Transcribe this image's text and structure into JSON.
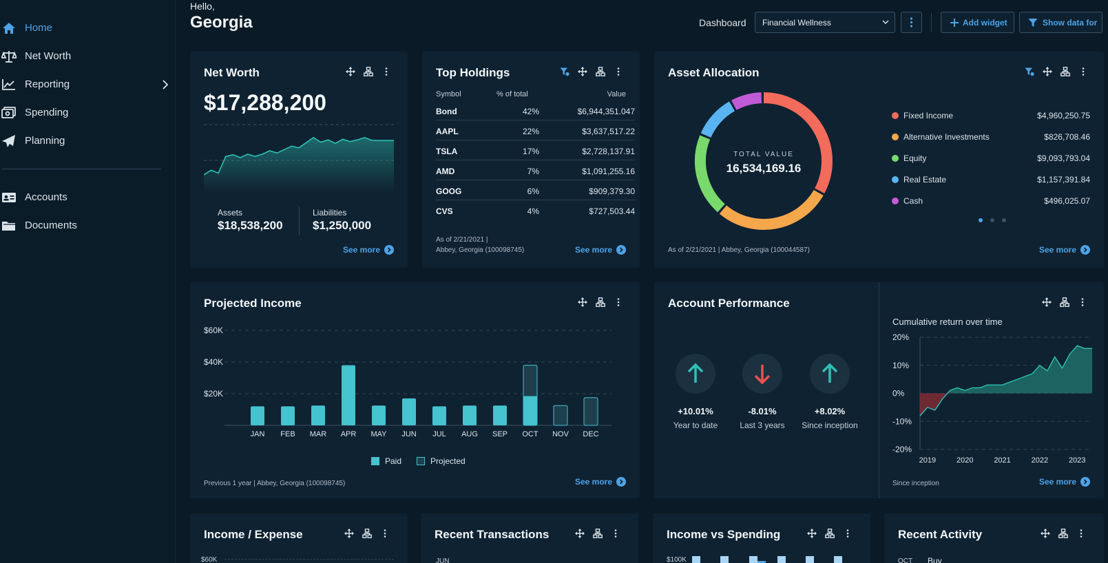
{
  "sidebar": {
    "items": [
      {
        "label": "Home",
        "icon": "home-icon"
      },
      {
        "label": "Net Worth",
        "icon": "scale-icon"
      },
      {
        "label": "Reporting",
        "icon": "line-chart-icon"
      },
      {
        "label": "Spending",
        "icon": "money-icon"
      },
      {
        "label": "Planning",
        "icon": "paper-plane-icon"
      },
      {
        "label": "Accounts",
        "icon": "id-card-icon"
      },
      {
        "label": "Documents",
        "icon": "folder-icon"
      }
    ]
  },
  "header": {
    "hello": "Hello,",
    "name": "Georgia",
    "dashboard_label": "Dashboard",
    "dashboard_select": "Financial Wellness",
    "add_widget": "Add widget",
    "show_data_for": "Show data for"
  },
  "net_worth": {
    "title": "Net Worth",
    "value": "$17,288,200",
    "assets_label": "Assets",
    "assets_value": "$18,538,200",
    "liabilities_label": "Liabilities",
    "liabilities_value": "$1,250,000",
    "see_more": "See more"
  },
  "top_holdings": {
    "title": "Top Holdings",
    "col_symbol": "Symbol",
    "col_pct": "% of total",
    "col_value": "Value",
    "rows": [
      {
        "symbol": "Bond",
        "pct": "42%",
        "value": "$6,944,351.047"
      },
      {
        "symbol": "AAPL",
        "pct": "22%",
        "value": "$3,637,517.22"
      },
      {
        "symbol": "TSLA",
        "pct": "17%",
        "value": "$2,728,137.91"
      },
      {
        "symbol": "AMD",
        "pct": "7%",
        "value": "$1,091,255.16"
      },
      {
        "symbol": "GOOG",
        "pct": "6%",
        "value": "$909,379.30"
      },
      {
        "symbol": "CVS",
        "pct": "4%",
        "value": "$727,503.44"
      }
    ],
    "note_line1": "As of 2/21/2021 |",
    "note_line2": "Abbey, Georgia (100098745)",
    "see_more": "See more"
  },
  "asset_allocation": {
    "title": "Asset Allocation",
    "total_label": "TOTAL VALUE",
    "total_value": "16,534,169.16",
    "items": [
      {
        "name": "Fixed Income",
        "value": "$4,960,250.75",
        "color": "#f26b5b"
      },
      {
        "name": "Alternative Investments",
        "value": "$826,708.46",
        "color": "#f5a74b"
      },
      {
        "name": "Equity",
        "value": "$9,093,793.04",
        "color": "#79d96c"
      },
      {
        "name": "Real Estate",
        "value": "$1,157,391.84",
        "color": "#5ab4f2"
      },
      {
        "name": "Cash",
        "value": "$496,025.07",
        "color": "#c05bd6"
      }
    ],
    "note": "As of 2/21/2021 | Abbey, Georgia (100044587)",
    "see_more": "See more"
  },
  "projected_income": {
    "title": "Projected Income",
    "legend_paid": "Paid",
    "legend_projected": "Projected",
    "note": "Previous 1 year | Abbey, Georgia (100098745)",
    "see_more": "See more"
  },
  "account_performance": {
    "title": "Account Performance",
    "metrics": [
      {
        "value": "+10.01%",
        "label": "Year to date",
        "direction": "up"
      },
      {
        "value": "-8.01%",
        "label": "Last 3 years",
        "direction": "down"
      },
      {
        "value": "+8.02%",
        "label": "Since inception",
        "direction": "up"
      }
    ],
    "cumulative_title": "Cumulative return over time",
    "since_inception": "Since inception",
    "see_more": "See more"
  },
  "bottom_cards": {
    "income_expense": "Income / Expense",
    "income_expense_tick": "$60K",
    "recent_transactions": "Recent Transactions",
    "recent_transactions_tick": "JUN",
    "income_vs_spending": "Income vs Spending",
    "income_vs_spending_tick": "$100K",
    "recent_activity": "Recent Activity",
    "recent_activity_month": "OCT",
    "recent_activity_type": "Buy"
  },
  "colors": {
    "accent": "#4ea3e6",
    "teal": "#45c3cf",
    "up": "#2fc1b5",
    "down": "#f0504f"
  },
  "chart_data": [
    {
      "type": "area",
      "title": "Net Worth",
      "x": [
        1,
        2,
        3,
        4,
        5,
        6,
        7,
        8,
        9,
        10,
        11,
        12,
        13,
        14,
        15,
        16,
        17,
        18,
        19,
        20,
        21,
        22,
        23,
        24,
        25,
        26,
        27
      ],
      "values": [
        30,
        38,
        33,
        62,
        65,
        60,
        66,
        62,
        66,
        72,
        68,
        74,
        80,
        77,
        86,
        95,
        87,
        91,
        85,
        92,
        88,
        91,
        95,
        90,
        90,
        90,
        90
      ],
      "ylim": [
        0,
        120
      ]
    },
    {
      "type": "bar",
      "title": "Projected Income",
      "categories": [
        "JAN",
        "FEB",
        "MAR",
        "APR",
        "MAY",
        "JUN",
        "JUL",
        "AUG",
        "SEP",
        "OCT",
        "NOV",
        "DEC"
      ],
      "series": [
        {
          "name": "Paid",
          "values": [
            12,
            12,
            12.5,
            38,
            12.5,
            17,
            12,
            12.5,
            12.5,
            18.5,
            0,
            0
          ]
        },
        {
          "name": "Projected",
          "values": [
            0,
            0,
            0,
            0,
            0,
            0,
            0,
            0,
            0,
            38,
            12.5,
            17.5
          ]
        }
      ],
      "yticks": [
        "$60K",
        "$40K",
        "$20K"
      ],
      "ylim": [
        0,
        60
      ]
    },
    {
      "type": "area",
      "title": "Cumulative return over time",
      "x": [
        2018.8,
        2019.0,
        2019.2,
        2019.4,
        2019.6,
        2019.8,
        2020.0,
        2020.2,
        2020.4,
        2020.6,
        2020.8,
        2021.0,
        2021.2,
        2021.4,
        2021.6,
        2021.8,
        2022.0,
        2022.2,
        2022.4,
        2022.6,
        2022.8,
        2023.0,
        2023.2,
        2023.4
      ],
      "values": [
        -8,
        -5,
        -6,
        -2,
        1,
        2,
        1,
        2,
        2,
        3,
        3,
        3,
        4,
        5,
        6,
        7,
        10,
        8,
        13,
        9,
        14,
        17,
        16,
        16
      ],
      "yticks": [
        "20%",
        "10%",
        "0%",
        "-10%",
        "-20%"
      ],
      "xticks": [
        "2019",
        "2020",
        "2021",
        "2022",
        "2023"
      ],
      "ylim": [
        -20,
        20
      ]
    }
  ]
}
